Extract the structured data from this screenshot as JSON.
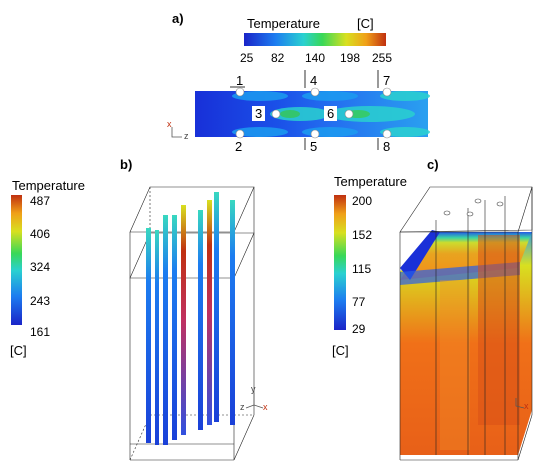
{
  "panel_a": {
    "label": "a)",
    "legend_title": "Temperature",
    "legend_unit": "[C]",
    "ticks": [
      "25",
      "82",
      "140",
      "198",
      "255"
    ],
    "port_labels": [
      "1",
      "4",
      "7",
      "2",
      "5",
      "8"
    ],
    "box_labels": [
      "3",
      "6"
    ],
    "axis_x": "x",
    "axis_z": "z"
  },
  "panel_b": {
    "label": "b)",
    "legend_title": "Temperature",
    "legend_unit": "[C]",
    "ticks": [
      "487",
      "406",
      "324",
      "243",
      "161"
    ],
    "axis_y": "y",
    "axis_z": "z",
    "axis_x": "x"
  },
  "panel_c": {
    "label": "c)",
    "legend_title": "Temperature",
    "legend_unit": "[C]",
    "ticks": [
      "200",
      "152",
      "115",
      "77",
      "29"
    ],
    "axis_x": "x"
  },
  "colors": {
    "scale": [
      "#1a24c8",
      "#1c7cf0",
      "#2ad1d0",
      "#38d858",
      "#d8e020",
      "#f0a018",
      "#c03010"
    ]
  }
}
